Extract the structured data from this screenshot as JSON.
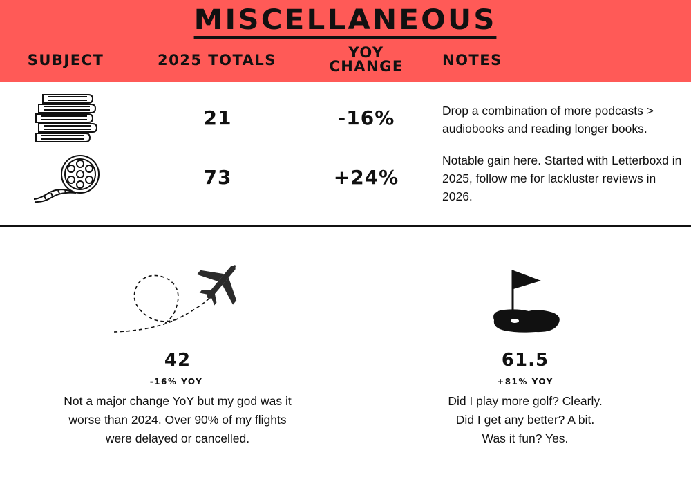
{
  "title": "MISCELLANEOUS",
  "columns": {
    "subject": "SUBJECT",
    "totals": "2025 TOTALS",
    "yoy_line1": "YOY",
    "yoy_line2": "CHANGE",
    "notes": "NOTES"
  },
  "rows": [
    {
      "icon": "books-stack-icon",
      "total": "21",
      "yoy": "-16%",
      "note": "Drop a combination of more podcasts > audiobooks and reading longer books."
    },
    {
      "icon": "film-reel-icon",
      "total": "73",
      "yoy": "+24%",
      "note": "Notable gain here. Started with Letterboxd in 2025, follow me for lackluster reviews in 2026."
    }
  ],
  "stats": [
    {
      "icon": "airplane-icon",
      "value": "42",
      "yoy": "-16% YOY",
      "desc": [
        "Not a major change YoY but my god was it",
        "worse than 2024. Over 90% of my flights",
        "were delayed or cancelled."
      ]
    },
    {
      "icon": "golf-flag-icon",
      "value": "61.5",
      "yoy": "+81% YOY",
      "desc": [
        "Did I play more golf? Clearly.",
        "Did I get any better? A bit.",
        "Was it fun? Yes."
      ]
    }
  ],
  "colors": {
    "header_bg": "#ff5a57",
    "ink": "#111111"
  }
}
